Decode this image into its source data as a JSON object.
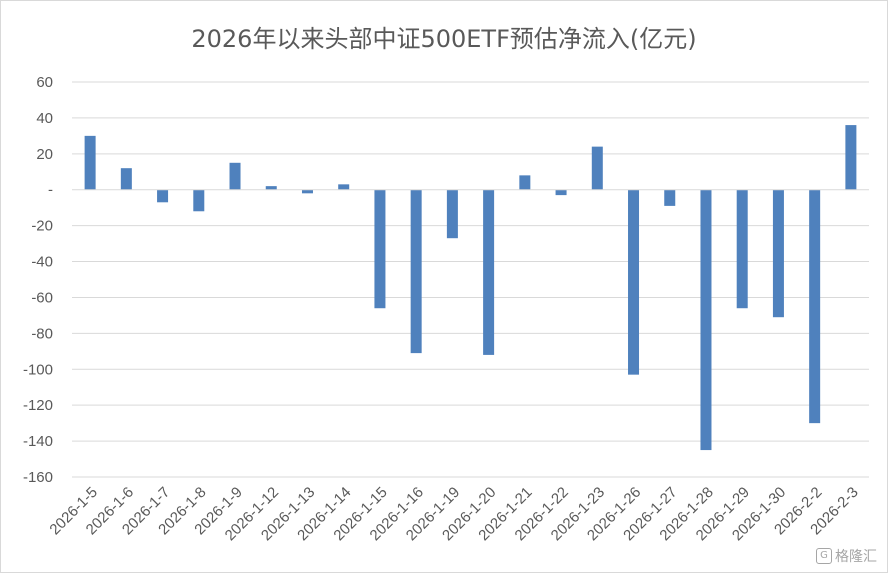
{
  "chart_data": {
    "type": "bar",
    "title": "2026年以来头部中证500ETF预估净流入(亿元)",
    "categories": [
      "2026-1-5",
      "2026-1-6",
      "2026-1-7",
      "2026-1-8",
      "2026-1-9",
      "2026-1-12",
      "2026-1-13",
      "2026-1-14",
      "2026-1-15",
      "2026-1-16",
      "2026-1-19",
      "2026-1-20",
      "2026-1-21",
      "2026-1-22",
      "2026-1-23",
      "2026-1-26",
      "2026-1-27",
      "2026-1-28",
      "2026-1-29",
      "2026-1-30",
      "2026-2-2",
      "2026-2-3"
    ],
    "values": [
      30,
      12,
      -7,
      -12,
      15,
      2,
      -2,
      3,
      -66,
      -91,
      -27,
      -92,
      8,
      -3,
      24,
      -103,
      -9,
      -145,
      -66,
      -71,
      -130,
      36
    ],
    "ylim": [
      -160,
      60
    ],
    "yticks": [
      60,
      40,
      20,
      0,
      -20,
      -40,
      -60,
      -80,
      -100,
      -120,
      -140,
      -160
    ],
    "ytick_labels": [
      "60",
      "40",
      "20",
      "-",
      "-20",
      "-40",
      "-60",
      "-80",
      "-100",
      "-120",
      "-140",
      "-160"
    ],
    "xlabel": "",
    "ylabel": "",
    "grid": true,
    "bar_color": "#4f81bd",
    "grid_color": "#d9d9d9"
  },
  "watermark": {
    "text": "格隆汇",
    "icon": "G"
  }
}
